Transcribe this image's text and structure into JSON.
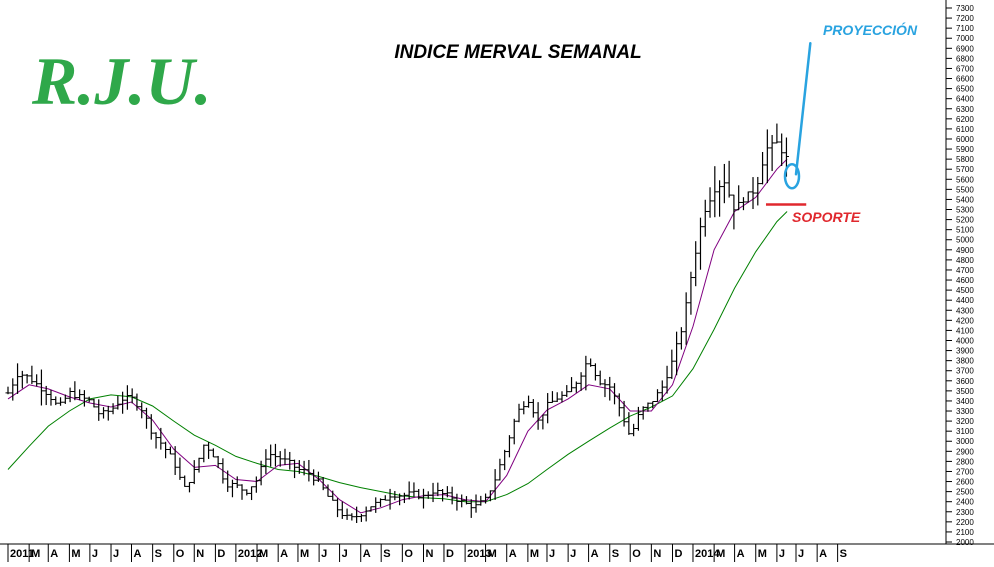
{
  "brand": "R.J.U.",
  "chart_data": {
    "type": "ohlc",
    "title": "INDICE MERVAL SEMANAL",
    "y_axis": {
      "position": "right",
      "ylim": [
        2000,
        7300
      ],
      "ticks": [
        2000,
        2100,
        2200,
        2300,
        2400,
        2500,
        2600,
        2700,
        2800,
        2900,
        3000,
        3100,
        3200,
        3300,
        3400,
        3500,
        3600,
        3700,
        3800,
        3900,
        4000,
        4100,
        4200,
        4300,
        4400,
        4500,
        4600,
        4700,
        4800,
        4900,
        5000,
        5100,
        5200,
        5300,
        5400,
        5500,
        5600,
        5700,
        5800,
        5900,
        6000,
        6100,
        6200,
        6300,
        6400,
        6500,
        6600,
        6700,
        6800,
        6900,
        7000,
        7100,
        7200,
        7300
      ]
    },
    "x_axis": {
      "labels": [
        "2011",
        "M",
        "A",
        "M",
        "J",
        "J",
        "A",
        "S",
        "O",
        "N",
        "D",
        "2012",
        "M",
        "A",
        "M",
        "J",
        "J",
        "A",
        "S",
        "O",
        "N",
        "D",
        "2013",
        "M",
        "A",
        "M",
        "J",
        "J",
        "A",
        "S",
        "O",
        "N",
        "D",
        "2014",
        "M",
        "A",
        "M",
        "J",
        "J",
        "A",
        "S"
      ]
    },
    "price_path": [
      [
        "2011-01",
        3480
      ],
      [
        "2011-01-16",
        3680
      ],
      [
        "2011-02",
        3630
      ],
      [
        "2011-03",
        3470
      ],
      [
        "2011-03-16",
        3330
      ],
      [
        "2011-04",
        3480
      ],
      [
        "2011-04-16",
        3440
      ],
      [
        "2011-05",
        3400
      ],
      [
        "2011-05-16",
        3260
      ],
      [
        "2011-06",
        3310
      ],
      [
        "2011-06-16",
        3420
      ],
      [
        "2011-07",
        3430
      ],
      [
        "2011-07-16",
        3320
      ],
      [
        "2011-08",
        3080
      ],
      [
        "2011-08-16",
        2960
      ],
      [
        "2011-09",
        2800
      ],
      [
        "2011-09-16",
        2520
      ],
      [
        "2011-10",
        2700
      ],
      [
        "2011-10-16",
        2980
      ],
      [
        "2011-11",
        2840
      ],
      [
        "2011-11-16",
        2580
      ],
      [
        "2011-12",
        2560
      ],
      [
        "2011-12-16",
        2500
      ],
      [
        "2012-01",
        2620
      ],
      [
        "2012-01-16",
        2880
      ],
      [
        "2012-02",
        2840
      ],
      [
        "2012-02-16",
        2790
      ],
      [
        "2012-03",
        2720
      ],
      [
        "2012-03-16",
        2690
      ],
      [
        "2012-04",
        2590
      ],
      [
        "2012-04-16",
        2430
      ],
      [
        "2012-05",
        2300
      ],
      [
        "2012-05-16",
        2220
      ],
      [
        "2012-06",
        2280
      ],
      [
        "2012-06-16",
        2360
      ],
      [
        "2012-07",
        2400
      ],
      [
        "2012-07-16",
        2480
      ],
      [
        "2012-08",
        2460
      ],
      [
        "2012-08-16",
        2480
      ],
      [
        "2012-09",
        2450
      ],
      [
        "2012-09-16",
        2510
      ],
      [
        "2012-10",
        2470
      ],
      [
        "2012-10-16",
        2440
      ],
      [
        "2012-11",
        2380
      ],
      [
        "2012-11-16",
        2350
      ],
      [
        "2012-12",
        2420
      ],
      [
        "2012-12-16",
        2640
      ],
      [
        "2013-01",
        2960
      ],
      [
        "2013-01-16",
        3280
      ],
      [
        "2013-02",
        3430
      ],
      [
        "2013-02-16",
        3200
      ],
      [
        "2013-03",
        3350
      ],
      [
        "2013-03-16",
        3430
      ],
      [
        "2013-04",
        3470
      ],
      [
        "2013-04-16",
        3620
      ],
      [
        "2013-05",
        3820
      ],
      [
        "2013-05-16",
        3600
      ],
      [
        "2013-06",
        3540
      ],
      [
        "2013-06-16",
        3320
      ],
      [
        "2013-07",
        3040
      ],
      [
        "2013-07-16",
        3300
      ],
      [
        "2013-08",
        3390
      ],
      [
        "2013-08-16",
        3520
      ],
      [
        "2013-09",
        3800
      ],
      [
        "2013-09-16",
        4150
      ],
      [
        "2013-10",
        4750
      ],
      [
        "2013-10-16",
        5260
      ],
      [
        "2013-11",
        5500
      ],
      [
        "2013-11-16",
        5580
      ],
      [
        "2013-12",
        5300
      ],
      [
        "2013-12-16",
        5420
      ],
      [
        "2014-01",
        5500
      ],
      [
        "2014-01-16",
        5900
      ],
      [
        "2014-02",
        5960
      ],
      [
        "2014-02-16",
        5800
      ]
    ],
    "ma_short": [
      [
        "2011-01",
        3420
      ],
      [
        "2011-02",
        3560
      ],
      [
        "2011-03",
        3520
      ],
      [
        "2011-04",
        3440
      ],
      [
        "2011-05",
        3380
      ],
      [
        "2011-06",
        3340
      ],
      [
        "2011-07",
        3390
      ],
      [
        "2011-08",
        3210
      ],
      [
        "2011-09",
        2920
      ],
      [
        "2011-10",
        2740
      ],
      [
        "2011-11",
        2760
      ],
      [
        "2011-12",
        2620
      ],
      [
        "2012-01",
        2600
      ],
      [
        "2012-02",
        2760
      ],
      [
        "2012-03",
        2780
      ],
      [
        "2012-04",
        2620
      ],
      [
        "2012-05",
        2420
      ],
      [
        "2012-06",
        2290
      ],
      [
        "2012-07",
        2340
      ],
      [
        "2012-08",
        2420
      ],
      [
        "2012-09",
        2460
      ],
      [
        "2012-10",
        2470
      ],
      [
        "2012-11",
        2420
      ],
      [
        "2012-12",
        2400
      ],
      [
        "2013-01",
        2660
      ],
      [
        "2013-02",
        3100
      ],
      [
        "2013-03",
        3310
      ],
      [
        "2013-04",
        3420
      ],
      [
        "2013-05",
        3560
      ],
      [
        "2013-06",
        3520
      ],
      [
        "2013-07",
        3300
      ],
      [
        "2013-08",
        3300
      ],
      [
        "2013-09",
        3560
      ],
      [
        "2013-10",
        4140
      ],
      [
        "2013-11",
        4900
      ],
      [
        "2013-12",
        5280
      ],
      [
        "2014-01",
        5420
      ],
      [
        "2014-02",
        5700
      ],
      [
        "2014-02-16",
        5800
      ]
    ],
    "ma_long": [
      [
        "2011-01",
        2720
      ],
      [
        "2011-02",
        2950
      ],
      [
        "2011-03",
        3150
      ],
      [
        "2011-04",
        3300
      ],
      [
        "2011-05",
        3420
      ],
      [
        "2011-06",
        3460
      ],
      [
        "2011-07",
        3440
      ],
      [
        "2011-08",
        3350
      ],
      [
        "2011-09",
        3200
      ],
      [
        "2011-10",
        3060
      ],
      [
        "2011-11",
        2960
      ],
      [
        "2011-12",
        2850
      ],
      [
        "2012-01",
        2780
      ],
      [
        "2012-02",
        2720
      ],
      [
        "2012-03",
        2700
      ],
      [
        "2012-04",
        2650
      ],
      [
        "2012-05",
        2590
      ],
      [
        "2012-06",
        2540
      ],
      [
        "2012-07",
        2500
      ],
      [
        "2012-08",
        2460
      ],
      [
        "2012-09",
        2440
      ],
      [
        "2012-10",
        2430
      ],
      [
        "2012-11",
        2400
      ],
      [
        "2012-12",
        2400
      ],
      [
        "2013-01",
        2470
      ],
      [
        "2013-02",
        2580
      ],
      [
        "2013-03",
        2720
      ],
      [
        "2013-04",
        2870
      ],
      [
        "2013-05",
        3000
      ],
      [
        "2013-06",
        3130
      ],
      [
        "2013-07",
        3250
      ],
      [
        "2013-08",
        3340
      ],
      [
        "2013-09",
        3450
      ],
      [
        "2013-10",
        3720
      ],
      [
        "2013-11",
        4110
      ],
      [
        "2013-12",
        4520
      ],
      [
        "2014-01",
        4880
      ],
      [
        "2014-02",
        5180
      ],
      [
        "2014-02-16",
        5280
      ]
    ],
    "annotations": {
      "projection": {
        "label": "PROYECCIÓN",
        "arrow_from": [
          "2014-03-01",
          5650
        ],
        "arrow_to": [
          "2014-03-22",
          6950
        ]
      },
      "support": {
        "label": "SOPORTE",
        "level": 5350,
        "from": "2014-01-16",
        "to": "2014-03-16"
      }
    },
    "colors": {
      "bars": "#000000",
      "ma_short": "#800080",
      "ma_long": "#008000",
      "projection": "#29a3e0",
      "support": "#e0282e",
      "brand": "#2fa84a"
    },
    "grid": false,
    "legend": "none"
  }
}
